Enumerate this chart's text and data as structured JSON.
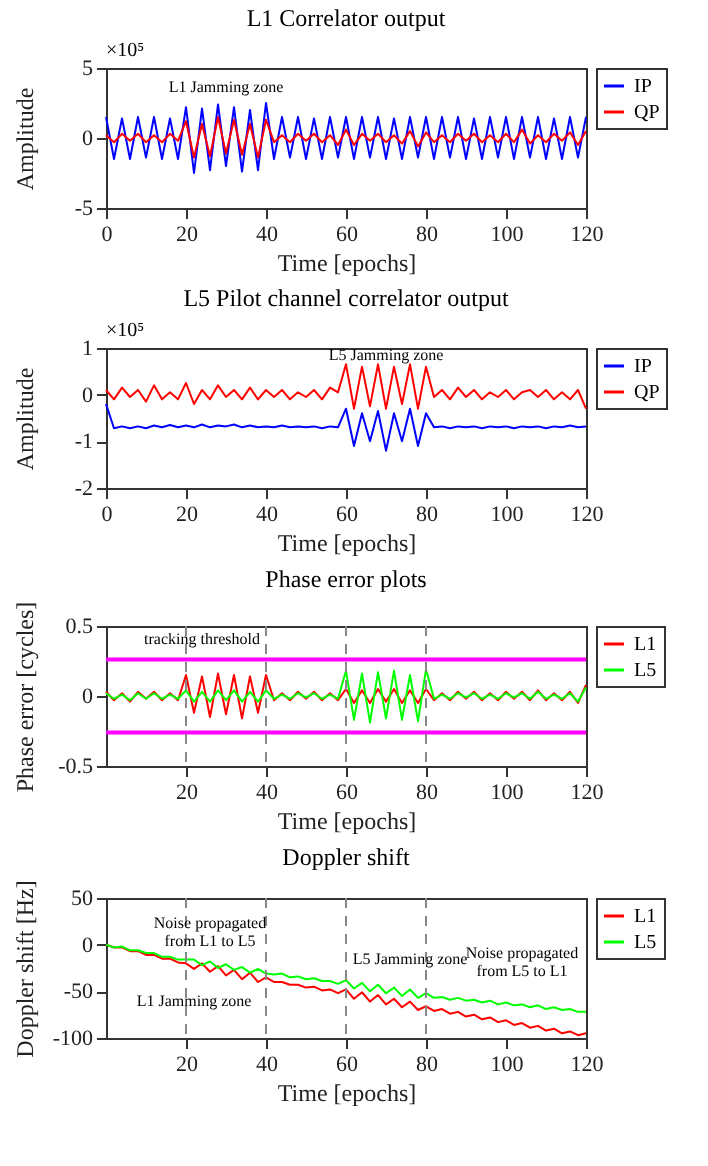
{
  "chart_data": [
    {
      "type": "line",
      "title": "L1 Correlator output",
      "xlabel": "Time [epochs]",
      "ylabel": "Amplitude",
      "xlim": [
        0,
        120
      ],
      "xticks": [
        0,
        20,
        40,
        60,
        80,
        100,
        120
      ],
      "ylim": [
        -5,
        5
      ],
      "yticks": [
        -5,
        0,
        5
      ],
      "legend": "right",
      "annotations": [
        "×10⁵",
        "L1 Jamming zone"
      ],
      "x": [
        0,
        2,
        4,
        6,
        8,
        10,
        12,
        14,
        16,
        18,
        20,
        22,
        24,
        26,
        28,
        30,
        32,
        34,
        36,
        38,
        40,
        42,
        44,
        46,
        48,
        50,
        52,
        54,
        56,
        58,
        60,
        62,
        64,
        66,
        68,
        70,
        72,
        74,
        76,
        78,
        80,
        82,
        84,
        86,
        88,
        90,
        92,
        94,
        96,
        98,
        100,
        102,
        104,
        106,
        108,
        110,
        112,
        114,
        116,
        118,
        120
      ],
      "series": [
        {
          "name": "IP",
          "color": "#0000ff",
          "values": [
            1.5,
            -1.5,
            1.4,
            -1.5,
            1.5,
            -1.4,
            1.5,
            -1.5,
            1.4,
            -1.5,
            2.2,
            -2.5,
            2.1,
            -2.3,
            2.4,
            -2.0,
            2.2,
            -2.4,
            2.0,
            -2.3,
            2.5,
            -1.5,
            1.5,
            -1.4,
            1.5,
            -1.5,
            1.4,
            -1.5,
            1.5,
            -1.4,
            1.5,
            -1.5,
            1.5,
            -1.4,
            1.5,
            -1.5,
            1.4,
            -1.5,
            1.5,
            -1.4,
            1.5,
            -1.5,
            1.5,
            -1.4,
            1.5,
            -1.5,
            1.4,
            -1.5,
            1.5,
            -1.4,
            1.5,
            -1.5,
            1.5,
            -1.4,
            1.5,
            -1.5,
            1.4,
            -1.5,
            1.5,
            -1.4,
            1.5
          ]
        },
        {
          "name": "QP",
          "color": "#ff0000",
          "values": [
            0.2,
            -0.3,
            0.3,
            -0.2,
            0.3,
            -0.3,
            0.2,
            -0.3,
            0.3,
            -0.2,
            1.2,
            -1.4,
            1.0,
            -1.3,
            1.5,
            -1.1,
            1.3,
            -1.2,
            1.0,
            -1.4,
            1.3,
            -0.3,
            0.2,
            -0.3,
            0.3,
            -0.2,
            0.3,
            -0.3,
            0.2,
            -0.5,
            0.6,
            -0.5,
            0.3,
            -0.2,
            0.3,
            -0.3,
            0.2,
            -0.4,
            0.5,
            -0.6,
            0.4,
            -0.3,
            0.2,
            -0.3,
            0.3,
            -0.2,
            0.3,
            -0.3,
            0.2,
            -0.3,
            0.3,
            -0.3,
            0.6,
            -0.4,
            0.2,
            -0.3,
            0.3,
            -0.2,
            0.4,
            -0.5,
            0.5
          ]
        }
      ]
    },
    {
      "type": "line",
      "title": "L5 Pilot channel correlator output",
      "xlabel": "Time [epochs]",
      "ylabel": "Amplitude",
      "xlim": [
        0,
        120
      ],
      "xticks": [
        0,
        20,
        40,
        60,
        80,
        100,
        120
      ],
      "ylim": [
        -2,
        1
      ],
      "yticks": [
        -2,
        -1,
        0,
        1
      ],
      "legend": "right",
      "annotations": [
        "×10⁵",
        "L5 Jamming zone"
      ],
      "x": [
        0,
        2,
        4,
        6,
        8,
        10,
        12,
        14,
        16,
        18,
        20,
        22,
        24,
        26,
        28,
        30,
        32,
        34,
        36,
        38,
        40,
        42,
        44,
        46,
        48,
        50,
        52,
        54,
        56,
        58,
        60,
        62,
        64,
        66,
        68,
        70,
        72,
        74,
        76,
        78,
        80,
        82,
        84,
        86,
        88,
        90,
        92,
        94,
        96,
        98,
        100,
        102,
        104,
        106,
        108,
        110,
        112,
        114,
        116,
        118,
        120
      ],
      "series": [
        {
          "name": "IP",
          "color": "#0000ff",
          "values": [
            -0.2,
            -0.72,
            -0.68,
            -0.72,
            -0.68,
            -0.72,
            -0.66,
            -0.7,
            -0.65,
            -0.7,
            -0.66,
            -0.7,
            -0.64,
            -0.7,
            -0.66,
            -0.68,
            -0.64,
            -0.7,
            -0.66,
            -0.7,
            -0.68,
            -0.7,
            -0.66,
            -0.7,
            -0.68,
            -0.7,
            -0.68,
            -0.72,
            -0.68,
            -0.7,
            -0.3,
            -1.1,
            -0.4,
            -1.0,
            -0.35,
            -1.2,
            -0.4,
            -1.0,
            -0.3,
            -1.1,
            -0.4,
            -0.7,
            -0.68,
            -0.72,
            -0.68,
            -0.7,
            -0.68,
            -0.72,
            -0.68,
            -0.7,
            -0.68,
            -0.72,
            -0.68,
            -0.7,
            -0.68,
            -0.72,
            -0.68,
            -0.7,
            -0.66,
            -0.7,
            -0.68
          ]
        },
        {
          "name": "QP",
          "color": "#ff0000",
          "values": [
            0.1,
            -0.1,
            0.15,
            -0.05,
            0.1,
            -0.15,
            0.2,
            -0.1,
            0.05,
            -0.1,
            0.25,
            -0.2,
            0.1,
            -0.1,
            0.2,
            -0.05,
            0.1,
            -0.1,
            0.15,
            -0.1,
            0.1,
            -0.05,
            0.1,
            -0.1,
            0.05,
            -0.05,
            0.1,
            -0.1,
            0.15,
            0.05,
            0.65,
            -0.3,
            0.6,
            -0.25,
            0.65,
            -0.3,
            0.6,
            -0.2,
            0.65,
            -0.3,
            0.6,
            -0.05,
            0.1,
            -0.1,
            0.15,
            -0.05,
            0.1,
            -0.1,
            0.05,
            -0.05,
            0.1,
            -0.1,
            0.05,
            0.1,
            -0.05,
            0.1,
            -0.1,
            0.05,
            -0.1,
            0.1,
            -0.3
          ]
        }
      ]
    },
    {
      "type": "line",
      "title": "Phase error plots",
      "xlabel": "Time [epochs]",
      "ylabel": "Phase error [cycles]",
      "xlim": [
        0,
        120
      ],
      "xticks": [
        20,
        40,
        60,
        80,
        100,
        120
      ],
      "ylim": [
        -0.5,
        0.5
      ],
      "yticks": [
        -0.5,
        0,
        0.5
      ],
      "legend": "right",
      "annotations": [
        "tracking threshold"
      ],
      "ref_lines": [
        {
          "axis": "y",
          "value": 0.26,
          "color": "#ff00ff",
          "line_style": "solid"
        },
        {
          "axis": "y",
          "value": -0.26,
          "color": "#ff00ff",
          "line_style": "solid"
        },
        {
          "axis": "x",
          "value": 20,
          "color": "#888888",
          "line_style": "dashed"
        },
        {
          "axis": "x",
          "value": 40,
          "color": "#888888",
          "line_style": "dashed"
        },
        {
          "axis": "x",
          "value": 60,
          "color": "#888888",
          "line_style": "dashed"
        },
        {
          "axis": "x",
          "value": 80,
          "color": "#888888",
          "line_style": "dashed"
        }
      ],
      "x": [
        0,
        2,
        4,
        6,
        8,
        10,
        12,
        14,
        16,
        18,
        20,
        22,
        24,
        26,
        28,
        30,
        32,
        34,
        36,
        38,
        40,
        42,
        44,
        46,
        48,
        50,
        52,
        54,
        56,
        58,
        60,
        62,
        64,
        66,
        68,
        70,
        72,
        74,
        76,
        78,
        80,
        82,
        84,
        86,
        88,
        90,
        92,
        94,
        96,
        98,
        100,
        102,
        104,
        106,
        108,
        110,
        112,
        114,
        116,
        118,
        120
      ],
      "series": [
        {
          "name": "L1",
          "color": "#ff0000",
          "values": [
            0.03,
            -0.03,
            0.02,
            -0.04,
            0.03,
            -0.02,
            0.03,
            -0.03,
            0.02,
            -0.03,
            0.15,
            -0.12,
            0.14,
            -0.15,
            0.16,
            -0.13,
            0.15,
            -0.16,
            0.14,
            -0.12,
            0.15,
            -0.03,
            0.02,
            -0.03,
            0.03,
            -0.02,
            0.03,
            -0.03,
            0.02,
            -0.03,
            0.05,
            -0.05,
            0.04,
            -0.05,
            0.05,
            -0.04,
            0.05,
            -0.05,
            0.04,
            -0.05,
            0.05,
            -0.03,
            0.02,
            -0.03,
            0.03,
            -0.02,
            0.03,
            -0.03,
            0.02,
            -0.03,
            0.03,
            -0.02,
            0.03,
            -0.03,
            0.04,
            -0.03,
            0.02,
            -0.03,
            0.03,
            -0.05,
            0.08
          ]
        },
        {
          "name": "L5",
          "color": "#00ff00",
          "values": [
            0.02,
            -0.02,
            0.01,
            -0.03,
            0.02,
            -0.02,
            0.02,
            -0.02,
            0.01,
            -0.02,
            0.04,
            -0.04,
            0.03,
            -0.04,
            0.04,
            -0.03,
            0.04,
            -0.04,
            0.03,
            -0.04,
            0.04,
            -0.02,
            0.01,
            -0.02,
            0.02,
            -0.01,
            0.02,
            -0.02,
            0.01,
            -0.02,
            0.18,
            -0.17,
            0.16,
            -0.19,
            0.17,
            -0.16,
            0.18,
            -0.17,
            0.15,
            -0.18,
            0.19,
            -0.02,
            0.01,
            -0.02,
            0.02,
            -0.01,
            0.02,
            -0.02,
            0.01,
            -0.02,
            0.02,
            -0.01,
            0.02,
            -0.02,
            0.03,
            -0.02,
            0.01,
            -0.02,
            0.02,
            -0.04,
            0.06
          ]
        }
      ]
    },
    {
      "type": "line",
      "title": "Doppler shift",
      "xlabel": "Time [epochs]",
      "ylabel": "Doppler shift [Hz]",
      "xlim": [
        0,
        120
      ],
      "xticks": [
        20,
        40,
        60,
        80,
        100,
        120
      ],
      "ylim": [
        -100,
        50
      ],
      "yticks": [
        -100,
        -50,
        0,
        50
      ],
      "legend": "right",
      "annotations": [
        "Noise propagated\nfrom L1 to L5",
        "L1 Jamming zone",
        "L5 Jamming zone",
        "Noise propagated\nfrom L5 to L1"
      ],
      "ref_lines": [
        {
          "axis": "x",
          "value": 20,
          "color": "#888888",
          "line_style": "dashed"
        },
        {
          "axis": "x",
          "value": 40,
          "color": "#888888",
          "line_style": "dashed"
        },
        {
          "axis": "x",
          "value": 60,
          "color": "#888888",
          "line_style": "dashed"
        },
        {
          "axis": "x",
          "value": 80,
          "color": "#888888",
          "line_style": "dashed"
        }
      ],
      "x": [
        0,
        2,
        4,
        6,
        8,
        10,
        12,
        14,
        16,
        18,
        20,
        22,
        24,
        26,
        28,
        30,
        32,
        34,
        36,
        38,
        40,
        42,
        44,
        46,
        48,
        50,
        52,
        54,
        56,
        58,
        60,
        62,
        64,
        66,
        68,
        70,
        72,
        74,
        76,
        78,
        80,
        82,
        84,
        86,
        88,
        90,
        92,
        94,
        96,
        98,
        100,
        102,
        104,
        106,
        108,
        110,
        112,
        114,
        116,
        118,
        120
      ],
      "series": [
        {
          "name": "L1",
          "color": "#ff0000",
          "values": [
            0,
            -3,
            -3,
            -7,
            -7,
            -11,
            -11,
            -15,
            -15,
            -19,
            -20,
            -26,
            -20,
            -29,
            -23,
            -33,
            -27,
            -37,
            -30,
            -40,
            -35,
            -40,
            -40,
            -43,
            -43,
            -46,
            -45,
            -49,
            -48,
            -52,
            -48,
            -58,
            -51,
            -61,
            -54,
            -64,
            -58,
            -67,
            -61,
            -70,
            -66,
            -71,
            -69,
            -74,
            -72,
            -77,
            -75,
            -80,
            -78,
            -83,
            -81,
            -86,
            -84,
            -89,
            -87,
            -92,
            -90,
            -95,
            -93,
            -97,
            -95
          ]
        },
        {
          "name": "L5",
          "color": "#00ff00",
          "values": [
            0,
            -3,
            -2,
            -6,
            -6,
            -9,
            -9,
            -13,
            -13,
            -16,
            -16,
            -16,
            -22,
            -18,
            -25,
            -21,
            -27,
            -24,
            -30,
            -26,
            -31,
            -32,
            -31,
            -35,
            -34,
            -37,
            -36,
            -39,
            -39,
            -42,
            -38,
            -47,
            -41,
            -50,
            -43,
            -52,
            -46,
            -55,
            -48,
            -57,
            -52,
            -57,
            -56,
            -59,
            -57,
            -60,
            -59,
            -62,
            -60,
            -64,
            -62,
            -65,
            -64,
            -67,
            -65,
            -69,
            -67,
            -70,
            -69,
            -72,
            -72
          ]
        }
      ]
    }
  ]
}
